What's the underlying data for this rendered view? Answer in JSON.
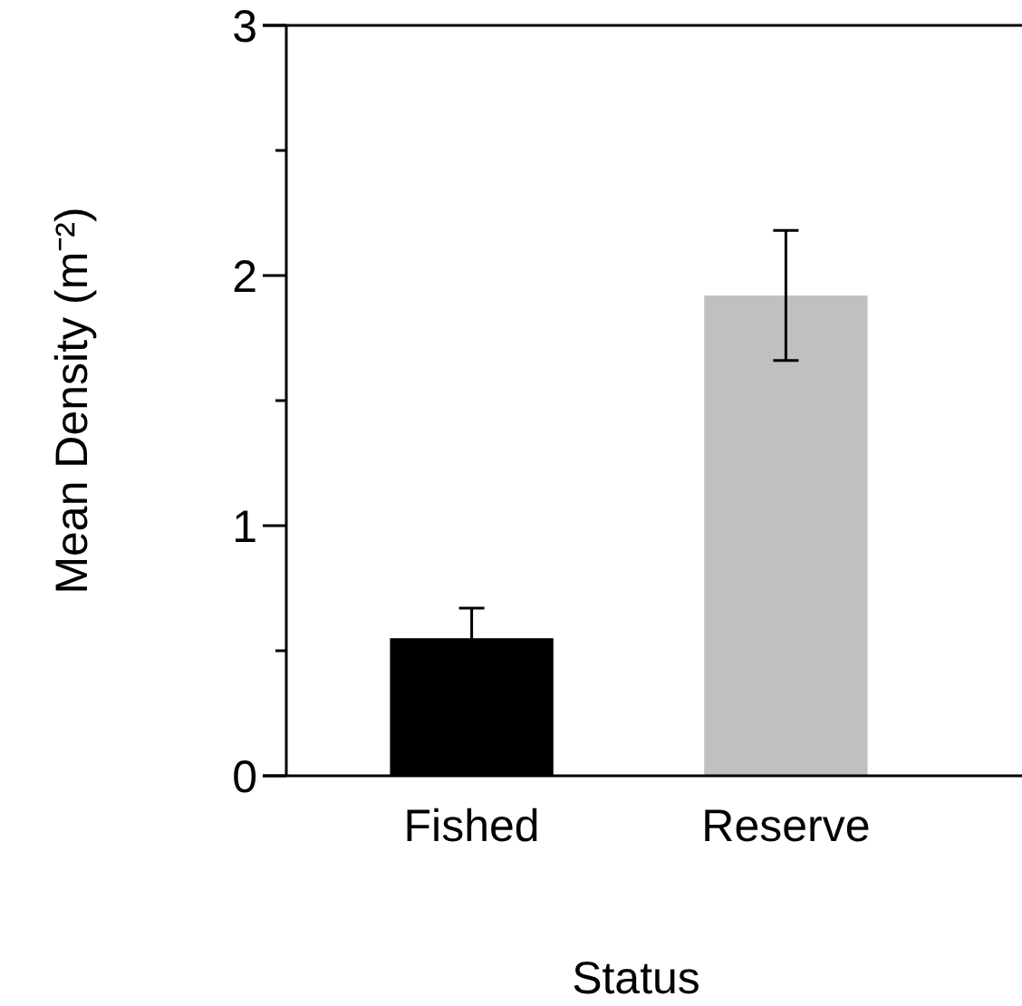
{
  "chart_data": {
    "type": "bar",
    "xlabel": "Status",
    "ylabel": "Mean Density (m⁻²)",
    "categories": [
      "Fished",
      "Reserve"
    ],
    "values": [
      0.55,
      1.92
    ],
    "colors": [
      "#000000",
      "#c0c0c0"
    ],
    "errors": [
      0.12,
      0.26
    ],
    "ylim": [
      0,
      3
    ],
    "yticks": [
      0,
      {
        "value": 0.5,
        "label": null
      },
      1,
      {
        "value": 1.5,
        "label": null
      },
      2,
      {
        "value": 2.5,
        "label": null
      },
      3
    ],
    "grid": false
  }
}
